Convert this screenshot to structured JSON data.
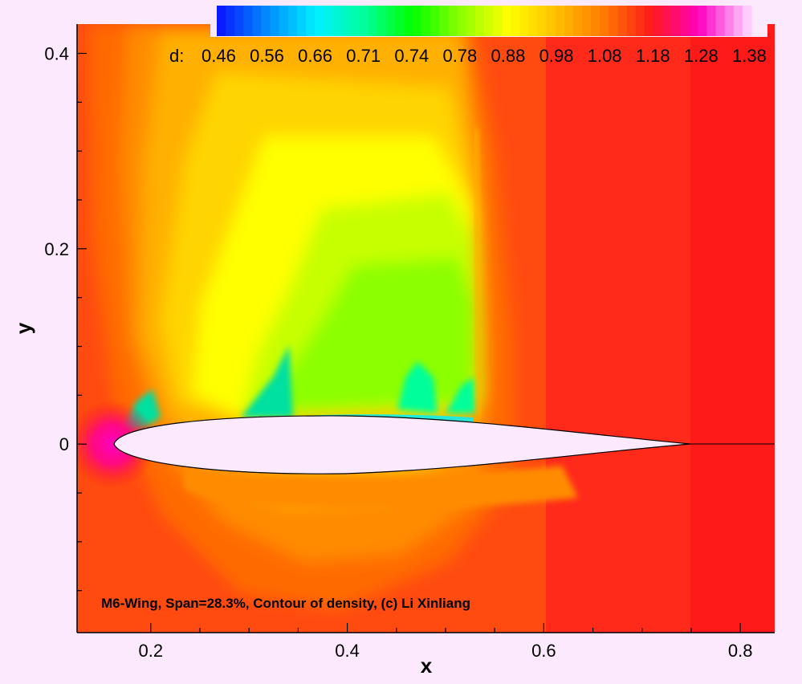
{
  "chart_data": {
    "type": "heatmap",
    "title": "",
    "xlabel": "x",
    "ylabel": "y",
    "xlim": [
      0.125,
      0.835
    ],
    "ylim": [
      -0.193,
      0.43
    ],
    "x_ticks": [
      "0.2",
      "0.4",
      "0.6",
      "0.8"
    ],
    "x_tick_values": [
      0.2,
      0.4,
      0.6,
      0.8
    ],
    "y_ticks": [
      "0",
      "0.2",
      "0.4"
    ],
    "y_tick_values": [
      0,
      0.2,
      0.4
    ],
    "colorbar": {
      "variable_label": "d:",
      "levels": [
        "0.46",
        "0.56",
        "0.66",
        "0.71",
        "0.74",
        "0.78",
        "0.88",
        "0.98",
        "1.08",
        "1.18",
        "1.28",
        "1.38"
      ],
      "level_values": [
        0.46,
        0.56,
        0.66,
        0.71,
        0.74,
        0.78,
        0.88,
        0.98,
        1.08,
        1.18,
        1.28,
        1.38
      ],
      "colors": [
        "#0a1cff",
        "#0090ff",
        "#00f0ff",
        "#00ff9a",
        "#00ff00",
        "#8cff00",
        "#ffff00",
        "#ffc000",
        "#ff7a00",
        "#ff1a1a",
        "#ff00c0",
        "#ffccff"
      ]
    },
    "caption": "M6-Wing, Span=28.3%, Contour of density, (c) Li Xinliang",
    "airfoil": {
      "leading_edge_x": 0.16,
      "trailing_edge_x": 0.76,
      "shock_x": 0.53
    }
  }
}
